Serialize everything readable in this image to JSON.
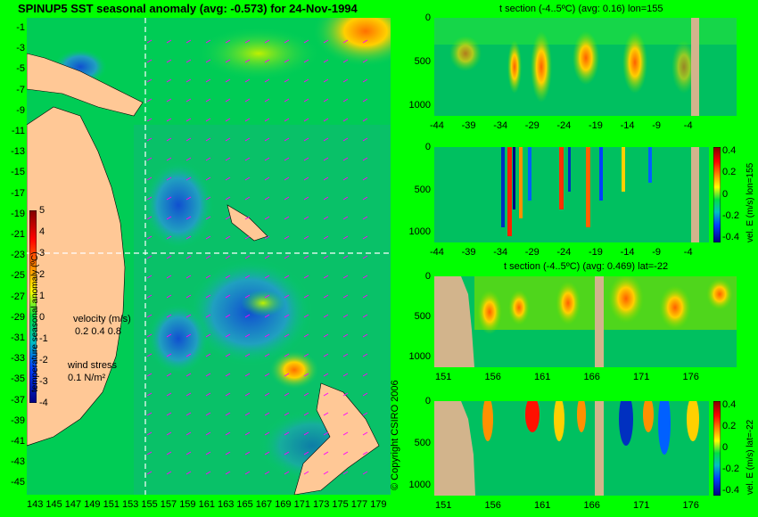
{
  "map": {
    "title": "SPINUP5 SST seasonal anomaly (avg: -0.573) for 24-Nov-1994",
    "x_ticks": [
      "143",
      "145",
      "147",
      "149",
      "151",
      "153",
      "155",
      "157",
      "159",
      "161",
      "163",
      "165",
      "167",
      "169",
      "171",
      "173",
      "175",
      "177",
      "179"
    ],
    "y_ticks": [
      "-1",
      "-3",
      "-5",
      "-7",
      "-9",
      "-11",
      "-13",
      "-15",
      "-17",
      "-19",
      "-21",
      "-23",
      "-25",
      "-27",
      "-29",
      "-31",
      "-33",
      "-35",
      "-37",
      "-39",
      "-41",
      "-43",
      "-45"
    ],
    "colorbar_ticks": [
      "5",
      "4",
      "3",
      "2",
      "1",
      "0",
      "-1",
      "-2",
      "-3",
      "-4"
    ],
    "colorbar_label": "temperature seasonal anomaly (ºC)",
    "velocity_label": "velocity (m/s)",
    "velocity_scale": "0.2 0.4 0.8",
    "wind_label": "wind stress",
    "wind_scale": "0.1 N/m²",
    "crosshair": {
      "lon": 155,
      "lat": -22
    }
  },
  "panels": [
    {
      "title": "t section (-4..5ºC) (avg: 0.16) lon=155",
      "x_ticks": [
        "-44",
        "-39",
        "-34",
        "-29",
        "-24",
        "-19",
        "-14",
        "-9",
        "-4"
      ],
      "y_ticks": [
        "0",
        "500",
        "1000"
      ]
    },
    {
      "title": "",
      "x_ticks": [
        "-44",
        "-39",
        "-34",
        "-29",
        "-24",
        "-19",
        "-14",
        "-9",
        "-4"
      ],
      "y_ticks": [
        "0",
        "500",
        "1000"
      ],
      "cbar_label": "vel. E (m/s) lon=155",
      "cbar_ticks": [
        "0.4",
        "0.2",
        "0",
        "-0.2",
        "-0.4"
      ]
    },
    {
      "title": "t section (-4..5ºC) (avg: 0.469) lat=-22",
      "x_ticks": [
        "151",
        "156",
        "161",
        "166",
        "171",
        "176"
      ],
      "y_ticks": [
        "0",
        "500",
        "1000"
      ]
    },
    {
      "title": "",
      "x_ticks": [
        "151",
        "156",
        "161",
        "166",
        "171",
        "176"
      ],
      "y_ticks": [
        "0",
        "500",
        "1000"
      ],
      "cbar_label": "vel. E (m/s) lat=-22",
      "cbar_ticks": [
        "0.4",
        "0.2",
        "0",
        "-0.2",
        "-0.4"
      ]
    }
  ],
  "copyright": "© Copyright CSIRO 2006",
  "chart_data": [
    {
      "type": "heatmap",
      "title": "SPINUP5 SST seasonal anomaly (avg: -0.573) for 24-Nov-1994",
      "xlim": [
        142,
        180
      ],
      "ylim": [
        -45,
        0
      ],
      "average": -0.573,
      "colorbar_range": [
        -4,
        5
      ],
      "colors": {
        "land": "#ffc896",
        "ocean_mid": "#00d060",
        "hot": "#ff9000",
        "cold": "#0030c0"
      }
    },
    {
      "type": "heatmap",
      "title": "t section (-4..5ºC) (avg: 0.16) lon=155",
      "average": 0.16,
      "xlim": [
        -45,
        -1
      ],
      "ylim": [
        1050,
        0
      ]
    },
    {
      "type": "heatmap",
      "title": "",
      "variable": "vel. E (m/s) lon=155",
      "colorbar_range": [
        -0.4,
        0.4
      ],
      "xlim": [
        -45,
        -1
      ],
      "ylim": [
        1050,
        0
      ]
    },
    {
      "type": "heatmap",
      "title": "t section (-4..5ºC) (avg: 0.469) lat=-22",
      "average": 0.469,
      "xlim": [
        150,
        180
      ],
      "ylim": [
        1050,
        0
      ]
    },
    {
      "type": "heatmap",
      "title": "",
      "variable": "vel. E (m/s) lat=-22",
      "colorbar_range": [
        -0.4,
        0.4
      ],
      "xlim": [
        150,
        180
      ],
      "ylim": [
        1050,
        0
      ]
    }
  ]
}
